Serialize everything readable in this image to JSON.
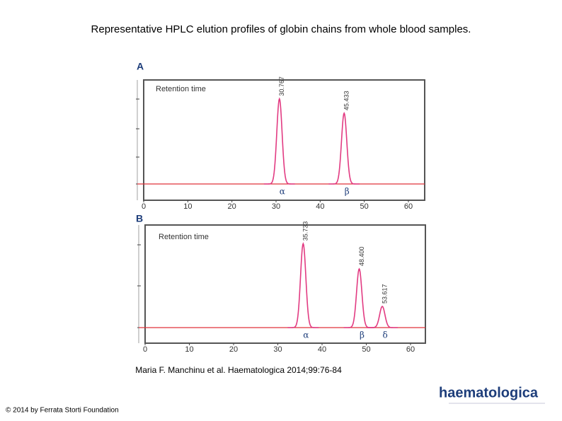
{
  "title": "Representative HPLC elution profiles of globin chains from whole blood samples.",
  "chart_data": [
    {
      "type": "line",
      "panel_label": "A",
      "annotation": "Retention time",
      "color": "#e23b82",
      "xlim": [
        0,
        63
      ],
      "xticks": [
        0,
        10,
        20,
        30,
        40,
        50,
        60
      ],
      "ylim": [
        0,
        100
      ],
      "peaks": [
        {
          "x": 30.767,
          "label": "30.767",
          "chain": "α",
          "height": 83
        },
        {
          "x": 45.433,
          "label": "45.433",
          "chain": "β",
          "height": 69
        }
      ]
    },
    {
      "type": "line",
      "panel_label": "B",
      "annotation": "Retention time",
      "color": "#e23b82",
      "xlim": [
        0,
        63
      ],
      "xticks": [
        0,
        10,
        20,
        30,
        40,
        50,
        60
      ],
      "ylim": [
        0,
        100
      ],
      "peaks": [
        {
          "x": 35.733,
          "label": "35.733",
          "chain": "α",
          "height": 83
        },
        {
          "x": 48.4,
          "label": "48.400",
          "chain": "β",
          "height": 58
        },
        {
          "x": 53.617,
          "label": "53.617",
          "chain": "δ",
          "height": 21
        }
      ]
    }
  ],
  "citation": "Maria F. Manchinu et al. Haematologica 2014;99:76-84",
  "copyright": "© 2014 by Ferrata Storti Foundation",
  "logo": "haematologica"
}
